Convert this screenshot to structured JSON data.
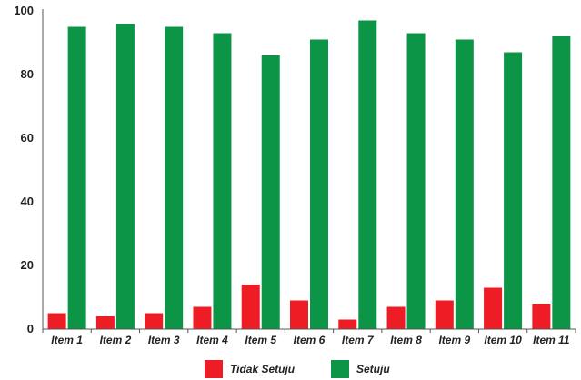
{
  "chart_data": {
    "type": "bar",
    "title": "",
    "xlabel": "",
    "ylabel": "",
    "ylim": [
      0,
      100
    ],
    "yticks": [
      0,
      20,
      40,
      60,
      80,
      100
    ],
    "grid": false,
    "legend_position": "bottom",
    "categories": [
      "Item 1",
      "Item 2",
      "Item 3",
      "Item 4",
      "Item 5",
      "Item 6",
      "Item 7",
      "Item 8",
      "Item 9",
      "Item 10",
      "Item 11"
    ],
    "series": [
      {
        "name": "Tidak Setuju",
        "color": "#ee1c25",
        "values": [
          5,
          4,
          5,
          7,
          14,
          9,
          3,
          7,
          9,
          13,
          8
        ]
      },
      {
        "name": "Setuju",
        "color": "#0c9447",
        "values": [
          95,
          96,
          95,
          93,
          86,
          91,
          97,
          93,
          91,
          87,
          92
        ]
      }
    ]
  }
}
